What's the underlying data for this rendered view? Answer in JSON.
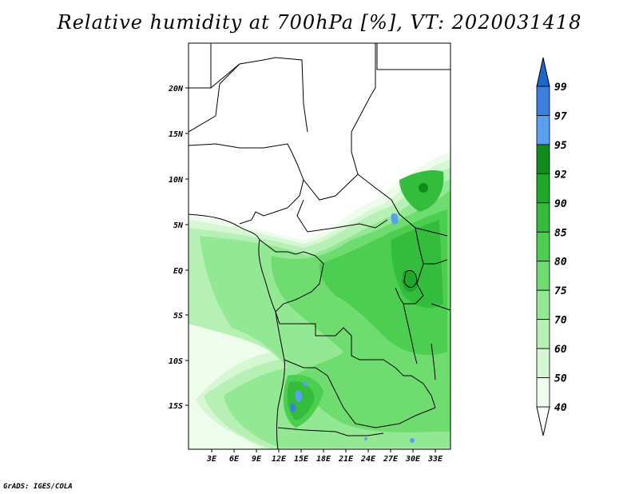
{
  "title": "Relative humidity at 700hPa [%], VT: 2020031418",
  "credit": "GrADS: IGES/COLA",
  "map": {
    "lon_range": [
      0,
      34
    ],
    "lat_range": [
      -20,
      25
    ],
    "xticks": [
      "3E",
      "6E",
      "9E",
      "12E",
      "15E",
      "18E",
      "21E",
      "24E",
      "27E",
      "30E",
      "33E"
    ],
    "yticks": [
      "20N",
      "15N",
      "10N",
      "5N",
      "EQ",
      "5S",
      "10S",
      "15S"
    ]
  },
  "colorbar": {
    "labels": [
      "99",
      "97",
      "95",
      "92",
      "90",
      "85",
      "80",
      "75",
      "70",
      "60",
      "50",
      "40"
    ],
    "colors": [
      "#1e66c8",
      "#3b80e0",
      "#5aa0f0",
      "#0f8c1a",
      "#1ea82a",
      "#34bd3c",
      "#4ccf50",
      "#6fdc70",
      "#93e893",
      "#b6f0b4",
      "#d5f7d2",
      "#eefcec"
    ]
  }
}
